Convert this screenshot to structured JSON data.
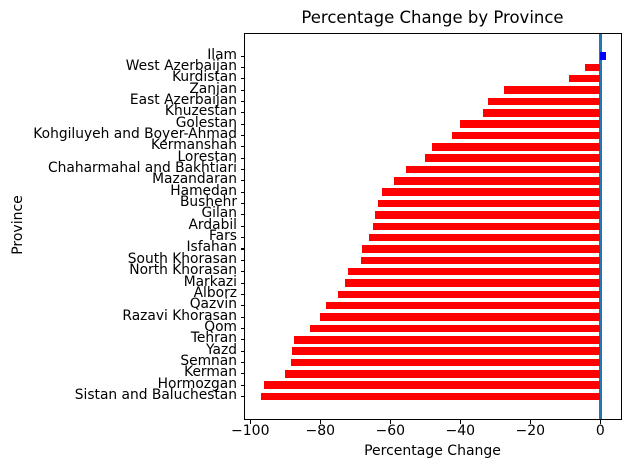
{
  "chart_data": {
    "type": "bar",
    "orientation": "horizontal",
    "title": "Percentage Change by Province",
    "xlabel": "Percentage Change",
    "ylabel": "Province",
    "categories": [
      "Ilam",
      "West Azerbaijan",
      "Kurdistan",
      "Zanjan",
      "East Azerbaijan",
      "Khuzestan",
      "Golestan",
      "Kohgiluyeh and Boyer-Ahmad",
      "Kermanshah",
      "Lorestan",
      "Chaharmahal and Bakhtiari",
      "Mazandaran",
      "Hamedan",
      "Bushehr",
      "Gilan",
      "Ardabil",
      "Fars",
      "Isfahan",
      "South Khorasan",
      "North Khorasan",
      "Markazi",
      "Alborz",
      "Qazvin",
      "Razavi Khorasan",
      "Qom",
      "Tehran",
      "Yazd",
      "Semnan",
      "Kerman",
      "Hormozgan",
      "Sistan and Baluchestan"
    ],
    "values": [
      1.5,
      -4.5,
      -9,
      -27.5,
      -32,
      -33.5,
      -40,
      -42.5,
      -48,
      -50,
      -55.5,
      -59,
      -62.5,
      -63.5,
      -64.5,
      -65,
      -66,
      -68,
      -68.5,
      -72,
      -73,
      -75,
      -78.5,
      -80,
      -83,
      -87.5,
      -88,
      -88.5,
      -90,
      -96,
      -97
    ],
    "xlim": [
      -101.5,
      5.9
    ],
    "xticks": [
      {
        "value": -100,
        "label": "−100"
      },
      {
        "value": -80,
        "label": "−80"
      },
      {
        "value": -60,
        "label": "−60"
      },
      {
        "value": -40,
        "label": "−40"
      },
      {
        "value": -20,
        "label": "−20"
      },
      {
        "value": 0,
        "label": "0"
      }
    ],
    "grid": false,
    "legend": null,
    "colors": {
      "bar_negative": "#ff0000",
      "bar_positive": "#0000ff",
      "zero_line": "#1f77b4",
      "axes": "#000000",
      "background": "#ffffff"
    }
  }
}
